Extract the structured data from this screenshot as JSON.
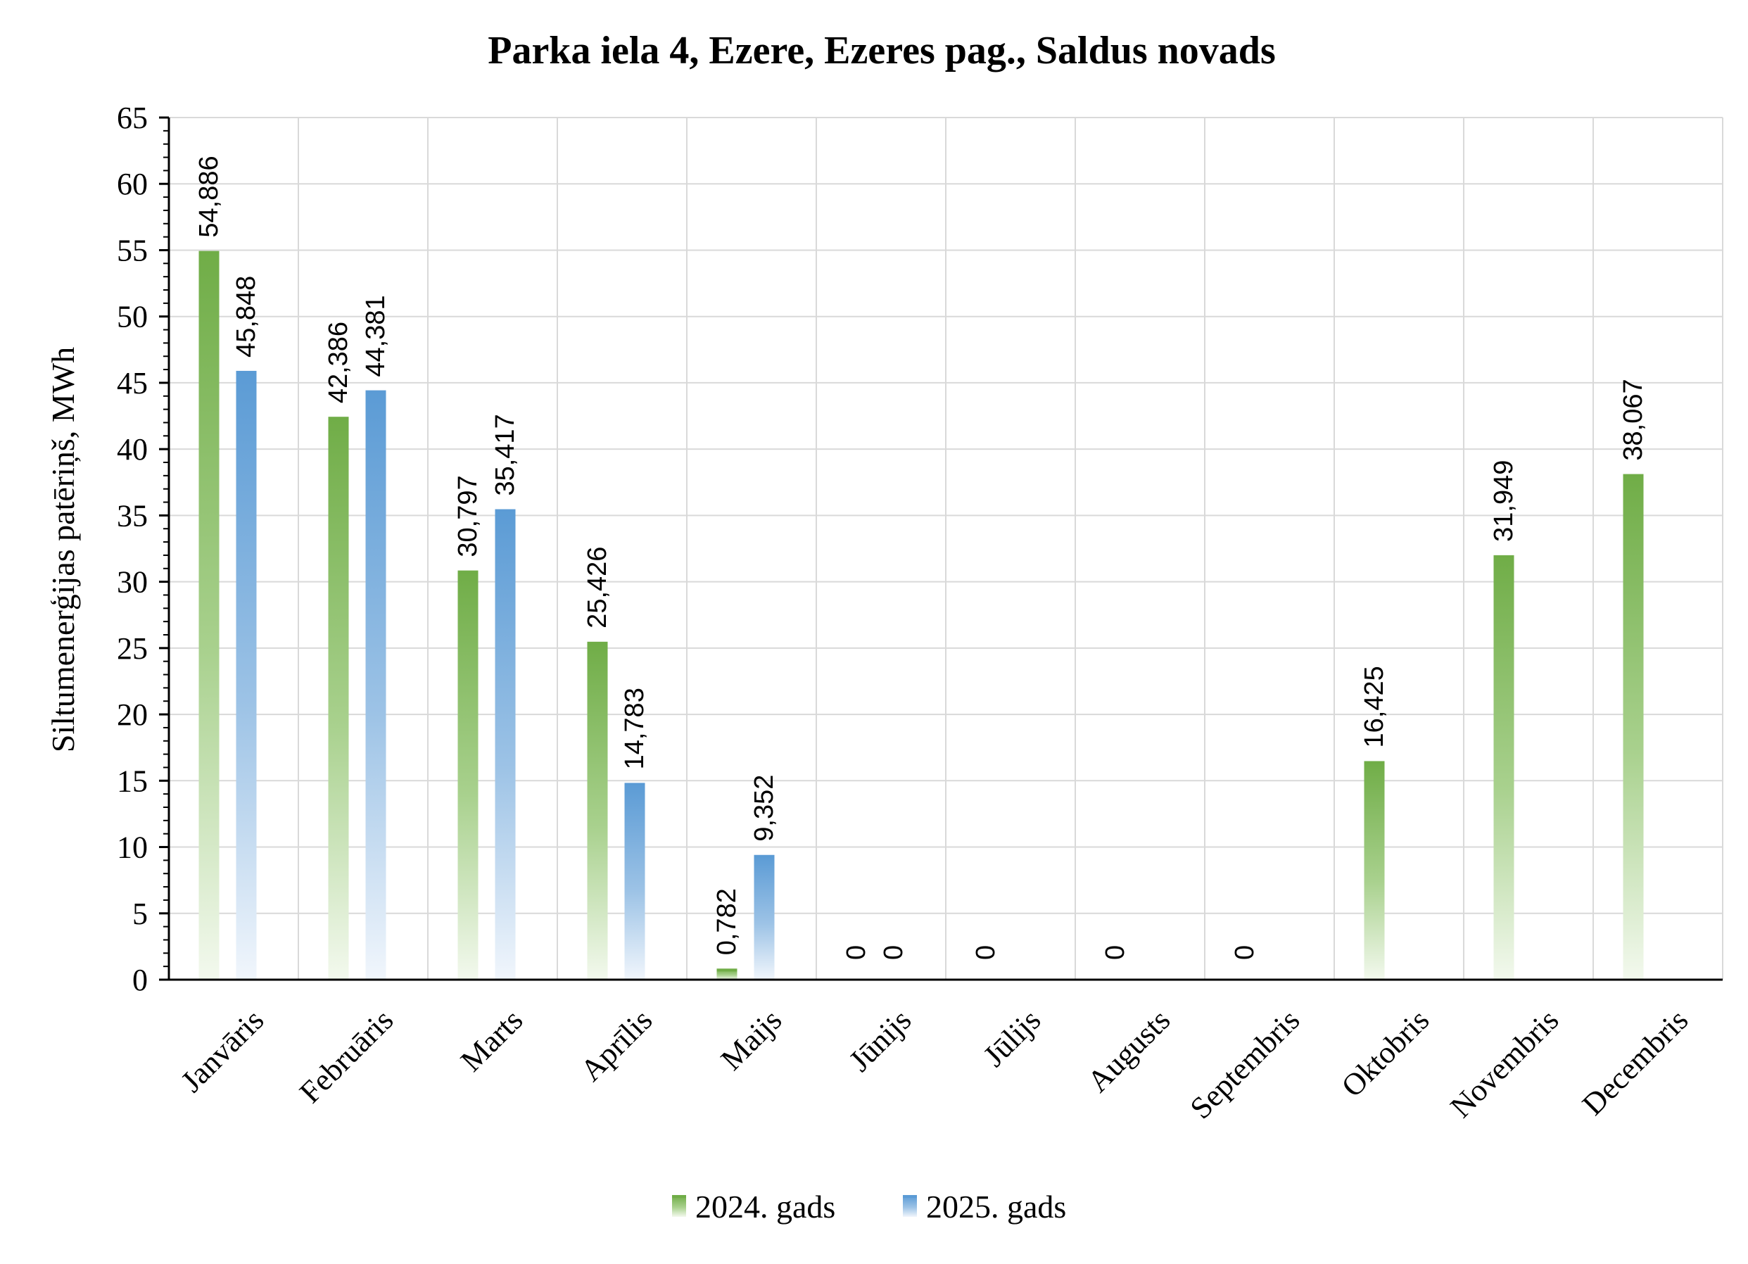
{
  "chart_data": {
    "type": "bar",
    "title": "Parka iela 4, Ezere, Ezeres pag., Saldus novads",
    "xlabel": "",
    "ylabel": "Siltumenerģijas patēriņš, MWh",
    "ylim": [
      0,
      65
    ],
    "yticks": [
      "0",
      "5",
      "10",
      "15",
      "20",
      "25",
      "30",
      "35",
      "40",
      "45",
      "50",
      "55",
      "60",
      "65"
    ],
    "grid": true,
    "legend_position": "bottom",
    "categories": [
      "Janvāris",
      "Februāris",
      "Marts",
      "Aprīlis",
      "Maijs",
      "Jūnijs",
      "Jūlijs",
      "Augusts",
      "Septembris",
      "Oktobris",
      "Novembris",
      "Decembris"
    ],
    "series": [
      {
        "name": "2024. gads",
        "color": "#70ad47",
        "values": [
          54.886,
          42.386,
          30.797,
          25.426,
          0.782,
          0,
          0,
          0,
          0,
          16.425,
          31.949,
          38.067
        ],
        "labels": [
          "54,886",
          "42,386",
          "30,797",
          "25,426",
          "0,782",
          "0",
          "0",
          "0",
          "0",
          "16,425",
          "31,949",
          "38,067"
        ]
      },
      {
        "name": "2025. gads",
        "color": "#5b9bd5",
        "values": [
          45.848,
          44.381,
          35.417,
          14.783,
          9.352,
          0,
          null,
          null,
          null,
          null,
          null,
          null
        ],
        "labels": [
          "45,848",
          "44,381",
          "35,417",
          "14,783",
          "9,352",
          "0",
          "",
          "",
          "",
          "",
          "",
          ""
        ]
      }
    ]
  }
}
